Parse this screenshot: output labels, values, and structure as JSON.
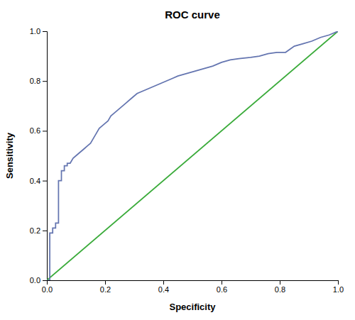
{
  "chart_data": {
    "type": "line",
    "title": "ROC curve",
    "x_label": "Specificity",
    "y_label": "Sensitivity",
    "xlim": [
      0.0,
      1.0
    ],
    "ylim": [
      0.0,
      1.0
    ],
    "xticks": [
      {
        "value": 0.0,
        "label": "0.0"
      },
      0.2,
      0.4,
      0.6,
      0.8,
      {
        "value": 1.0,
        "label": "1.0"
      }
    ],
    "yticks": [
      {
        "value": 0.0,
        "label": "0.0"
      },
      0.2,
      0.4,
      0.6,
      0.8,
      {
        "value": 1.0,
        "label": "1.0"
      }
    ],
    "grid": false,
    "series": [
      {
        "color": "#3aab3a",
        "x": [
          0,
          1
        ],
        "values": [
          0,
          1
        ]
      },
      {
        "color": "#6475b0",
        "x": [
          0.0,
          0.01,
          0.01,
          0.02,
          0.02,
          0.03,
          0.03,
          0.04,
          0.04,
          0.05,
          0.05,
          0.06,
          0.06,
          0.07,
          0.07,
          0.08,
          0.09,
          0.1,
          0.11,
          0.12,
          0.13,
          0.14,
          0.15,
          0.16,
          0.17,
          0.18,
          0.19,
          0.2,
          0.21,
          0.22,
          0.23,
          0.24,
          0.25,
          0.27,
          0.29,
          0.31,
          0.33,
          0.35,
          0.37,
          0.39,
          0.41,
          0.43,
          0.45,
          0.48,
          0.51,
          0.54,
          0.57,
          0.6,
          0.63,
          0.66,
          0.7,
          0.73,
          0.76,
          0.79,
          0.82,
          0.85,
          0.88,
          0.91,
          0.94,
          0.97,
          1.0
        ],
        "values": [
          0.0,
          0.0,
          0.19,
          0.19,
          0.21,
          0.21,
          0.23,
          0.23,
          0.4,
          0.4,
          0.44,
          0.44,
          0.46,
          0.46,
          0.47,
          0.47,
          0.49,
          0.5,
          0.51,
          0.52,
          0.53,
          0.54,
          0.55,
          0.57,
          0.59,
          0.61,
          0.62,
          0.63,
          0.64,
          0.66,
          0.67,
          0.68,
          0.69,
          0.71,
          0.73,
          0.75,
          0.76,
          0.77,
          0.78,
          0.79,
          0.8,
          0.81,
          0.82,
          0.83,
          0.84,
          0.85,
          0.86,
          0.875,
          0.885,
          0.89,
          0.895,
          0.9,
          0.91,
          0.915,
          0.915,
          0.94,
          0.95,
          0.96,
          0.975,
          0.985,
          1.0
        ]
      }
    ]
  }
}
